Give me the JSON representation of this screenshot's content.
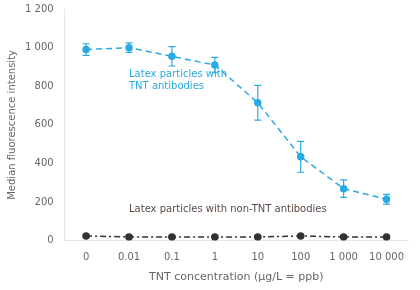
{
  "chart_data": {
    "type": "line",
    "xlabel": "TNT concentration (μg/L = ppb)",
    "ylabel": "Median fluorescence intensity",
    "categories": [
      "0",
      "0.01",
      "0.1",
      "1",
      "10",
      "100",
      "1 000",
      "10 000"
    ],
    "series": [
      {
        "name": "Latex particles with\nTNT antibodies",
        "color": "#29ABE2",
        "line_style": "dashed",
        "marker": "circle",
        "values": [
          990,
          1000,
          955,
          910,
          715,
          435,
          270,
          215
        ],
        "errors": [
          30,
          25,
          50,
          40,
          90,
          80,
          45,
          25
        ]
      },
      {
        "name": "Latex particles with non-TNT antibodies",
        "color": "#333333",
        "line_style": "dashdot",
        "marker": "circle",
        "values": [
          25,
          20,
          20,
          20,
          20,
          25,
          20,
          20
        ],
        "errors": [
          5,
          5,
          5,
          5,
          5,
          5,
          5,
          5
        ]
      }
    ],
    "annotations": [
      {
        "text": "Latex particles with\nTNT antibodies",
        "x": "0.01",
        "y": 830,
        "color": "#29ABE2"
      },
      {
        "text": "Latex particles with non-TNT antibodies",
        "x": "0.01",
        "y": 160,
        "color": "#5a4a42"
      }
    ],
    "ylim": [
      0,
      1200
    ],
    "yticks": [
      0,
      200,
      400,
      600,
      800,
      {
        "value": 1000,
        "label": "1 000"
      },
      {
        "value": 1200,
        "label": "1 200"
      }
    ],
    "grid": false
  }
}
